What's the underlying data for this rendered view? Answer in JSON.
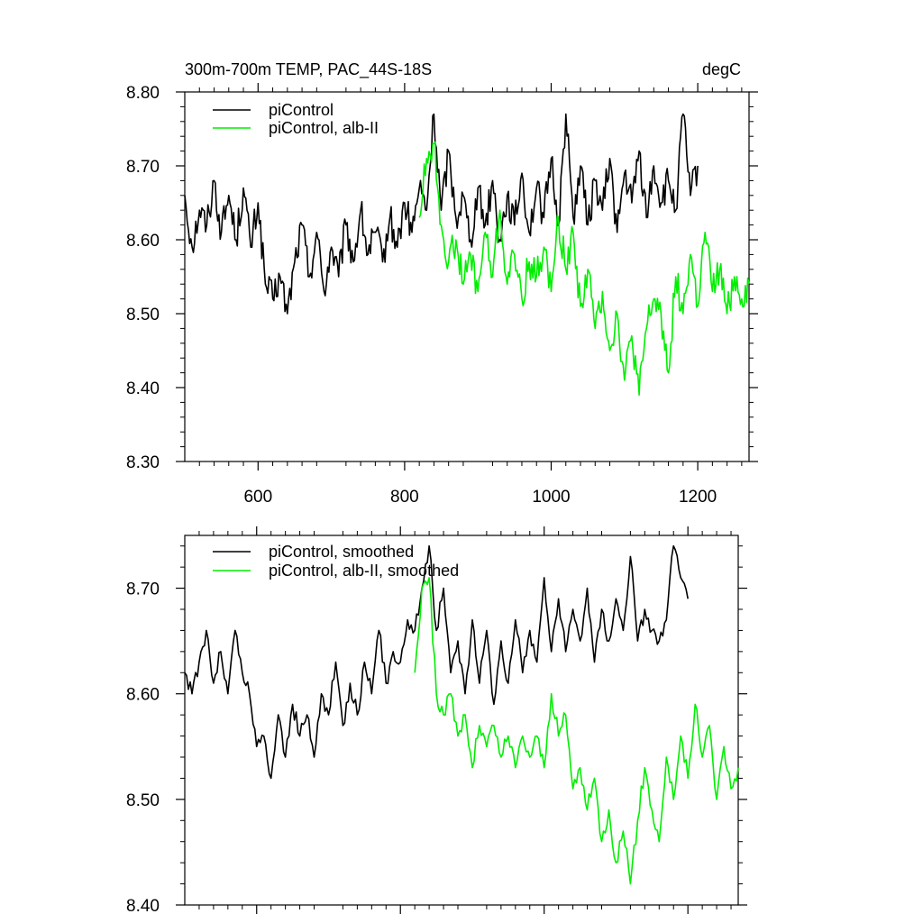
{
  "chart_data": [
    {
      "type": "line",
      "title": "300m-700m TEMP, PAC_44S-18S",
      "units": "degC",
      "xlabel": "",
      "ylabel": "",
      "xlim": [
        500,
        1270
      ],
      "ylim": [
        8.3,
        8.8
      ],
      "x_ticks": [
        600,
        800,
        1000,
        1200
      ],
      "x_tick_labels": [
        "600",
        "800",
        "1000",
        "1200"
      ],
      "y_ticks": [
        8.3,
        8.4,
        8.5,
        8.6,
        8.7,
        8.8
      ],
      "y_tick_labels": [
        "8.30",
        "8.40",
        "8.50",
        "8.60",
        "8.70",
        "8.80"
      ],
      "legend_position": "top-left",
      "series": [
        {
          "name": "piControl",
          "color": "#000000",
          "x": [
            500,
            510,
            520,
            530,
            540,
            550,
            560,
            570,
            580,
            590,
            600,
            610,
            620,
            630,
            640,
            650,
            660,
            670,
            680,
            690,
            700,
            710,
            720,
            730,
            740,
            750,
            760,
            770,
            780,
            790,
            800,
            810,
            820,
            830,
            840,
            850,
            860,
            870,
            880,
            890,
            900,
            910,
            920,
            930,
            940,
            950,
            960,
            970,
            980,
            990,
            1000,
            1010,
            1020,
            1030,
            1040,
            1050,
            1060,
            1070,
            1080,
            1090,
            1100,
            1110,
            1120,
            1130,
            1140,
            1150,
            1160,
            1170,
            1180,
            1190,
            1200
          ],
          "values": [
            8.66,
            8.59,
            8.64,
            8.62,
            8.68,
            8.61,
            8.66,
            8.6,
            8.67,
            8.59,
            8.65,
            8.54,
            8.52,
            8.55,
            8.5,
            8.57,
            8.62,
            8.55,
            8.61,
            8.53,
            8.59,
            8.55,
            8.62,
            8.57,
            8.64,
            8.58,
            8.61,
            8.57,
            8.63,
            8.59,
            8.65,
            8.61,
            8.67,
            8.64,
            8.77,
            8.64,
            8.72,
            8.63,
            8.66,
            8.6,
            8.67,
            8.62,
            8.68,
            8.6,
            8.66,
            8.62,
            8.69,
            8.61,
            8.67,
            8.63,
            8.71,
            8.62,
            8.77,
            8.63,
            8.7,
            8.62,
            8.68,
            8.64,
            8.71,
            8.61,
            8.69,
            8.65,
            8.72,
            8.63,
            8.7,
            8.65,
            8.68,
            8.64,
            8.77,
            8.66,
            8.7
          ]
        },
        {
          "name": "piControl, alb-II",
          "color": "#00ee00",
          "x": [
            820,
            830,
            840,
            850,
            860,
            870,
            880,
            890,
            900,
            910,
            920,
            930,
            940,
            950,
            960,
            970,
            980,
            990,
            1000,
            1010,
            1020,
            1030,
            1040,
            1050,
            1060,
            1070,
            1080,
            1090,
            1100,
            1110,
            1120,
            1130,
            1140,
            1150,
            1160,
            1170,
            1180,
            1190,
            1200,
            1210,
            1220,
            1230,
            1240,
            1250,
            1260,
            1270
          ],
          "values": [
            8.63,
            8.71,
            8.73,
            8.62,
            8.57,
            8.6,
            8.54,
            8.58,
            8.53,
            8.61,
            8.55,
            8.64,
            8.54,
            8.58,
            8.52,
            8.57,
            8.55,
            8.59,
            8.53,
            8.63,
            8.56,
            8.61,
            8.51,
            8.56,
            8.48,
            8.53,
            8.45,
            8.5,
            8.41,
            8.47,
            8.39,
            8.48,
            8.52,
            8.5,
            8.42,
            8.55,
            8.5,
            8.58,
            8.51,
            8.61,
            8.53,
            8.56,
            8.5,
            8.55,
            8.52,
            8.54
          ]
        }
      ]
    },
    {
      "type": "line",
      "title": "",
      "xlabel": "",
      "ylabel": "",
      "xlim": [
        500,
        1270
      ],
      "ylim": [
        8.4,
        8.75
      ],
      "x_ticks": [
        600,
        800,
        1000,
        1200
      ],
      "y_ticks": [
        8.4,
        8.5,
        8.6,
        8.7
      ],
      "y_tick_labels": [
        "8.40",
        "8.50",
        "8.60",
        "8.70"
      ],
      "legend_position": "top-left",
      "series": [
        {
          "name": "piControl, smoothed",
          "color": "#000000",
          "x": [
            500,
            510,
            520,
            530,
            540,
            550,
            560,
            570,
            580,
            590,
            600,
            610,
            620,
            630,
            640,
            650,
            660,
            670,
            680,
            690,
            700,
            710,
            720,
            730,
            740,
            750,
            760,
            770,
            780,
            790,
            800,
            810,
            820,
            830,
            840,
            850,
            860,
            870,
            880,
            890,
            900,
            910,
            920,
            930,
            940,
            950,
            960,
            970,
            980,
            990,
            1000,
            1010,
            1020,
            1030,
            1040,
            1050,
            1060,
            1070,
            1080,
            1090,
            1100,
            1110,
            1120,
            1130,
            1140,
            1150,
            1160,
            1170,
            1180,
            1190,
            1200
          ],
          "values": [
            8.62,
            8.6,
            8.63,
            8.66,
            8.61,
            8.64,
            8.6,
            8.66,
            8.62,
            8.6,
            8.55,
            8.56,
            8.52,
            8.58,
            8.54,
            8.59,
            8.56,
            8.58,
            8.54,
            8.6,
            8.58,
            8.63,
            8.57,
            8.61,
            8.58,
            8.63,
            8.6,
            8.66,
            8.61,
            8.64,
            8.63,
            8.67,
            8.66,
            8.7,
            8.74,
            8.66,
            8.7,
            8.62,
            8.65,
            8.6,
            8.67,
            8.61,
            8.66,
            8.59,
            8.65,
            8.61,
            8.67,
            8.62,
            8.66,
            8.63,
            8.71,
            8.64,
            8.69,
            8.64,
            8.68,
            8.65,
            8.7,
            8.63,
            8.68,
            8.65,
            8.69,
            8.66,
            8.73,
            8.65,
            8.68,
            8.66,
            8.65,
            8.67,
            8.74,
            8.71,
            8.69
          ]
        },
        {
          "name": "piControl, alb-II, smoothed",
          "color": "#00ee00",
          "x": [
            820,
            830,
            840,
            850,
            860,
            870,
            880,
            890,
            900,
            910,
            920,
            930,
            940,
            950,
            960,
            970,
            980,
            990,
            1000,
            1010,
            1020,
            1030,
            1040,
            1050,
            1060,
            1070,
            1080,
            1090,
            1100,
            1110,
            1120,
            1130,
            1140,
            1150,
            1160,
            1170,
            1180,
            1190,
            1200,
            1210,
            1220,
            1230,
            1240,
            1250,
            1260,
            1270
          ],
          "values": [
            8.62,
            8.7,
            8.71,
            8.6,
            8.58,
            8.6,
            8.56,
            8.58,
            8.53,
            8.57,
            8.55,
            8.57,
            8.54,
            8.56,
            8.53,
            8.56,
            8.54,
            8.56,
            8.53,
            8.6,
            8.56,
            8.58,
            8.51,
            8.53,
            8.49,
            8.52,
            8.46,
            8.49,
            8.44,
            8.47,
            8.42,
            8.48,
            8.53,
            8.49,
            8.46,
            8.54,
            8.5,
            8.56,
            8.52,
            8.59,
            8.54,
            8.57,
            8.5,
            8.55,
            8.51,
            8.53
          ]
        }
      ]
    }
  ]
}
